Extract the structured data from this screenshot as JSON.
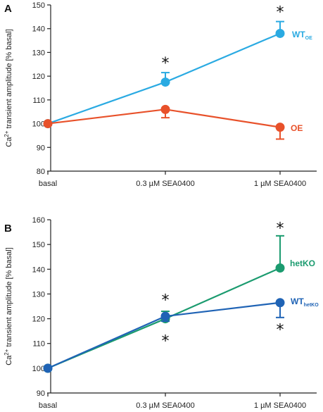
{
  "chart_data": [
    {
      "type": "line",
      "panel_label": "A",
      "ylabel": "Ca²⁺ transient amplitude [% basal]",
      "ylabel_parts": [
        "Ca",
        "2+",
        " transient amplitude [% basal]"
      ],
      "categories": [
        "basal",
        "0.3 µM SEA0400",
        "1 µM SEA0400"
      ],
      "ylim": [
        80,
        150
      ],
      "yticks": [
        80,
        90,
        100,
        110,
        120,
        130,
        140,
        150
      ],
      "series": [
        {
          "name": "WT_OE",
          "name_main": "WT",
          "name_sub": "OE",
          "color": "#2aaae2",
          "values": [
            100,
            117.5,
            138
          ],
          "errors": [
            0,
            4,
            5
          ],
          "error_dir": "up"
        },
        {
          "name": "OE",
          "name_main": "OE",
          "name_sub": "",
          "color": "#e8512a",
          "values": [
            100,
            106,
            98.5
          ],
          "errors": [
            0,
            3.5,
            5
          ],
          "error_dir": "down"
        }
      ],
      "annotations": [
        {
          "text": "*",
          "category": 1,
          "y": 126
        },
        {
          "text": "*",
          "category": 2,
          "y": 147.5
        }
      ]
    },
    {
      "type": "line",
      "panel_label": "B",
      "ylabel": "Ca²⁺ transient amplitude [% basal]",
      "ylabel_parts": [
        "Ca",
        "2+",
        " transient amplitude [% basal]"
      ],
      "categories": [
        "basal",
        "0.3 µM SEA0400",
        "1 µM SEA0400"
      ],
      "ylim": [
        90,
        160
      ],
      "yticks": [
        90,
        100,
        110,
        120,
        130,
        140,
        150,
        160
      ],
      "series": [
        {
          "name": "hetKO",
          "name_main": "hetKO",
          "name_sub": "",
          "color": "#1b9b6f",
          "values": [
            100,
            120,
            140.5
          ],
          "errors": [
            0,
            3,
            13
          ],
          "error_dir": "up"
        },
        {
          "name": "WT_hetKO",
          "name_main": "WT",
          "name_sub": "hetKO",
          "color": "#1f63b5",
          "values": [
            100,
            121,
            126.5
          ],
          "errors": [
            0,
            2,
            6
          ],
          "error_dir": "down"
        }
      ],
      "annotations": [
        {
          "text": "*",
          "category": 1,
          "y": 128
        },
        {
          "text": "*",
          "category": 1,
          "y": 111.5
        },
        {
          "text": "*",
          "category": 2,
          "y": 157
        },
        {
          "text": "*",
          "category": 2,
          "y": 116
        }
      ]
    }
  ]
}
